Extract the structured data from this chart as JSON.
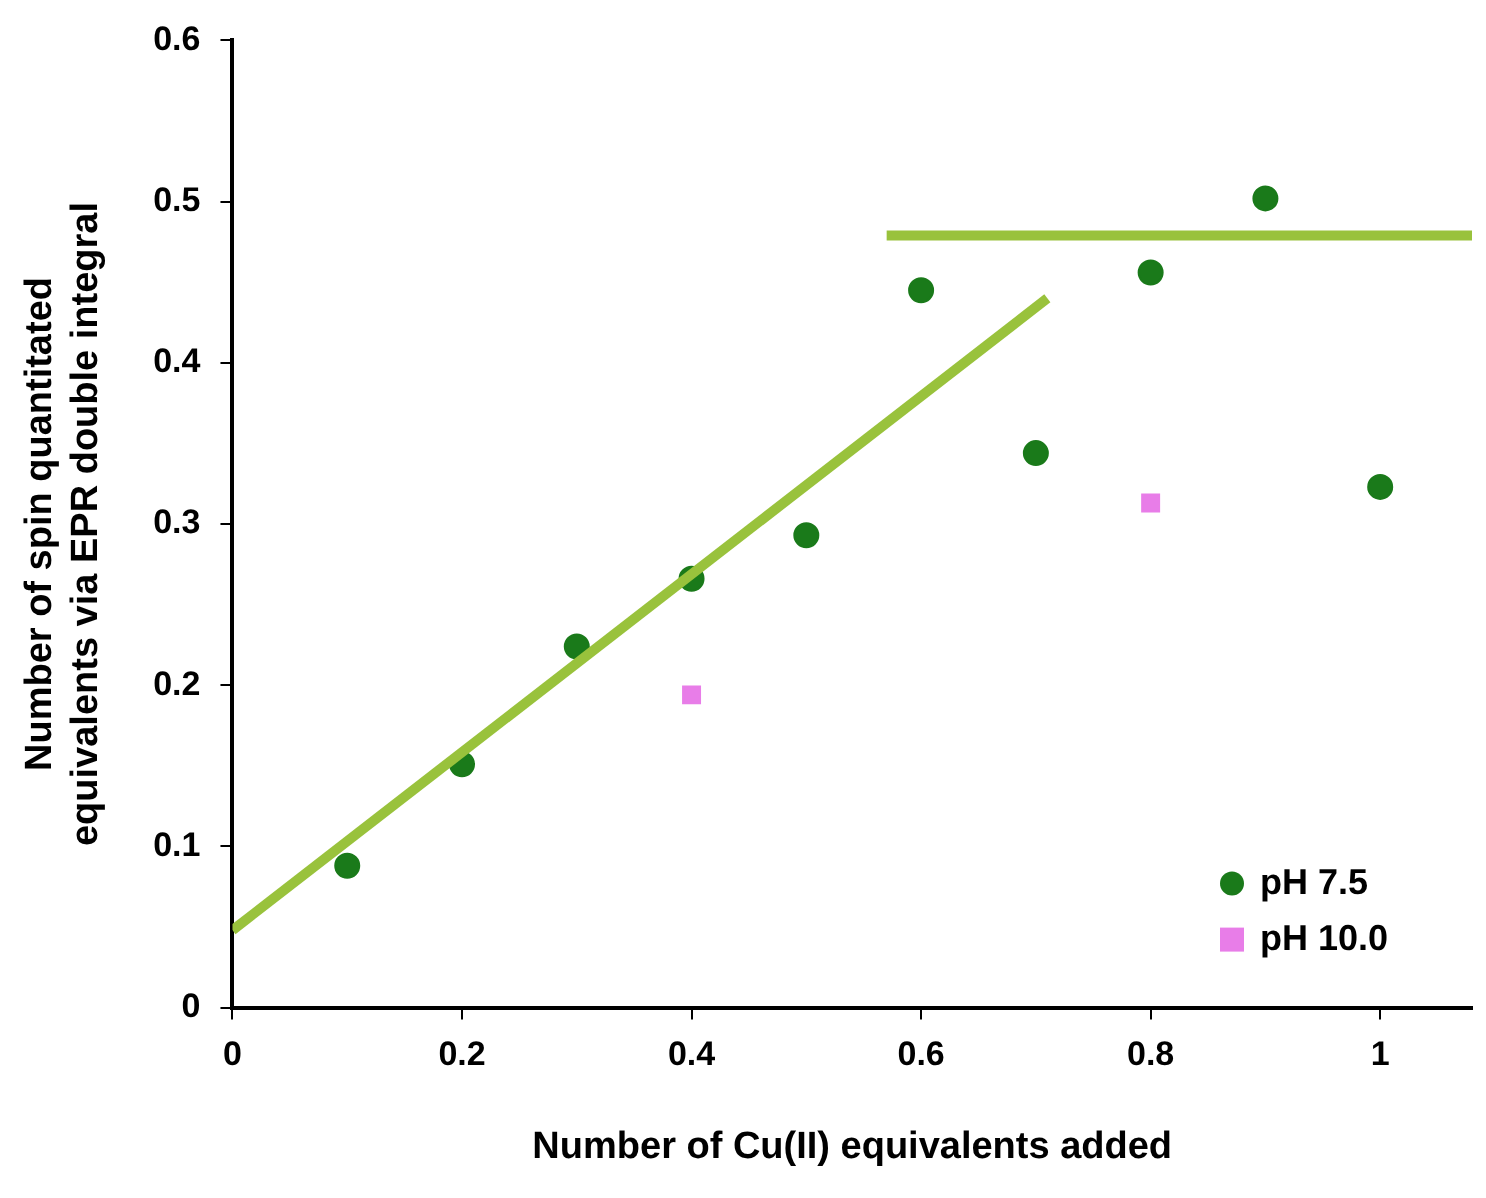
{
  "chart_data": {
    "type": "scatter",
    "xlabel": "Number of Cu(II) equivalents added",
    "ylabel": "Number of spin quantitated\nequivalents via EPR double integral",
    "xlim": [
      0,
      1.08
    ],
    "xticks": [
      0,
      0.2,
      0.4,
      0.6,
      0.8,
      1
    ],
    "ylim": [
      0,
      0.6
    ],
    "yticks": [
      0,
      0.1,
      0.2,
      0.3,
      0.4,
      0.5,
      0.6
    ],
    "grid": false,
    "legend": "bottom right",
    "series": [
      {
        "type": "line",
        "color": "#99c23c",
        "x": [
          0,
          0.71
        ],
        "values": [
          0.048,
          0.44
        ],
        "marker": "none",
        "line_style": "solid"
      },
      {
        "type": "line",
        "color": "#99c23c",
        "x": [
          0.57,
          1.08
        ],
        "values": [
          0.479,
          0.479
        ],
        "marker": "none",
        "line_style": "solid"
      },
      {
        "name": "pH 7.5",
        "type": "scatter",
        "color": "#1a7a1a",
        "marker": "circle",
        "x": [
          0.1,
          0.2,
          0.3,
          0.4,
          0.5,
          0.6,
          0.7,
          0.8,
          0.9,
          1.0
        ],
        "values": [
          0.088,
          0.151,
          0.224,
          0.266,
          0.293,
          0.445,
          0.344,
          0.456,
          0.502,
          0.323
        ]
      },
      {
        "name": "pH 10.0",
        "type": "scatter",
        "color": "#e87de8",
        "marker": "square",
        "x": [
          0.4,
          0.8
        ],
        "values": [
          0.194,
          0.313
        ]
      }
    ]
  }
}
